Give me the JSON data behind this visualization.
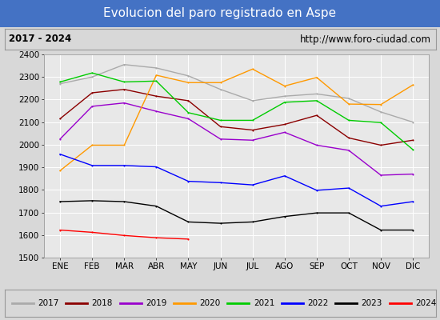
{
  "title": "Evolucion del paro registrado en Aspe",
  "subtitle_left": "2017 - 2024",
  "subtitle_right": "http://www.foro-ciudad.com",
  "ylim": [
    1500,
    2400
  ],
  "yticks": [
    1500,
    1600,
    1700,
    1800,
    1900,
    2000,
    2100,
    2200,
    2300,
    2400
  ],
  "months": [
    "ENE",
    "FEB",
    "MAR",
    "ABR",
    "MAY",
    "JUN",
    "JUL",
    "AGO",
    "SEP",
    "OCT",
    "NOV",
    "DIC"
  ],
  "series": {
    "2017": {
      "color": "#aaaaaa",
      "data": [
        2270,
        2300,
        2355,
        2340,
        2305,
        2245,
        2195,
        2215,
        2225,
        2205,
        2145,
        2100
      ]
    },
    "2018": {
      "color": "#8b0000",
      "data": [
        2115,
        2230,
        2245,
        2215,
        2195,
        2080,
        2065,
        2090,
        2130,
        2030,
        1998,
        2020
      ]
    },
    "2019": {
      "color": "#9900cc",
      "data": [
        2025,
        2170,
        2185,
        2148,
        2115,
        2025,
        2020,
        2055,
        1998,
        1975,
        1865,
        1870
      ]
    },
    "2020": {
      "color": "#ff9900",
      "data": [
        1885,
        1998,
        1998,
        2308,
        2275,
        2275,
        2335,
        2260,
        2298,
        2180,
        2178,
        2265
      ]
    },
    "2021": {
      "color": "#00cc00",
      "data": [
        2278,
        2318,
        2278,
        2282,
        2142,
        2108,
        2108,
        2188,
        2195,
        2108,
        2098,
        1978
      ]
    },
    "2022": {
      "color": "#0000ff",
      "data": [
        1958,
        1908,
        1908,
        1902,
        1838,
        1832,
        1822,
        1862,
        1798,
        1808,
        1728,
        1748
      ]
    },
    "2023": {
      "color": "#000000",
      "data": [
        1748,
        1752,
        1748,
        1728,
        1658,
        1652,
        1658,
        1682,
        1698,
        1698,
        1622,
        1622
      ]
    },
    "2024": {
      "color": "#ff0000",
      "data": [
        1622,
        1612,
        1598,
        1588,
        1582,
        null,
        null,
        null,
        null,
        null,
        null,
        null
      ]
    }
  },
  "background_color": "#d8d8d8",
  "plot_bg_color": "#e8e8e8",
  "title_bg_color": "#4472c4",
  "title_text_color": "#ffffff",
  "subtitle_bg_color": "#d8d8d8",
  "grid_color": "#ffffff",
  "border_color": "#999999"
}
